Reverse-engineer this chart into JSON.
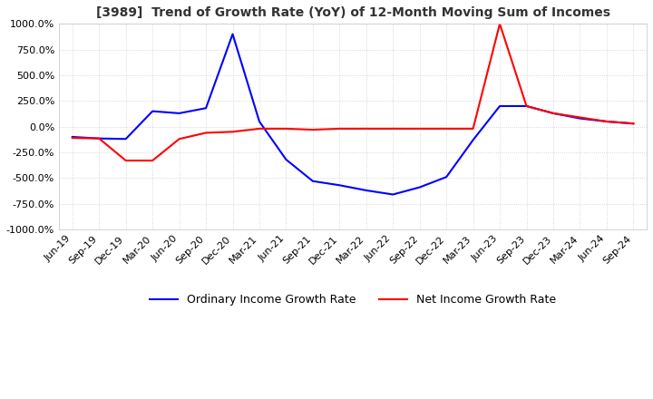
{
  "title": "[3989]  Trend of Growth Rate (YoY) of 12-Month Moving Sum of Incomes",
  "title_fontsize": 10,
  "background_color": "#ffffff",
  "grid_color": "#cccccc",
  "ylim": [
    -1000,
    1000
  ],
  "yticks": [
    -1000,
    -750,
    -500,
    -250,
    0,
    250,
    500,
    750,
    1000
  ],
  "x_labels": [
    "Jun-19",
    "Sep-19",
    "Dec-19",
    "Mar-20",
    "Jun-20",
    "Sep-20",
    "Dec-20",
    "Mar-21",
    "Jun-21",
    "Sep-21",
    "Dec-21",
    "Mar-22",
    "Jun-22",
    "Sep-22",
    "Dec-22",
    "Mar-23",
    "Jun-23",
    "Sep-23",
    "Dec-23",
    "Mar-24",
    "Jun-24",
    "Sep-24"
  ],
  "ordinary_income": [
    -100,
    -115,
    -120,
    150,
    130,
    180,
    900,
    50,
    -320,
    -530,
    -570,
    -620,
    -660,
    -590,
    -490,
    -130,
    200,
    200,
    130,
    80,
    50,
    30
  ],
  "net_income": [
    -110,
    -115,
    -330,
    -330,
    -120,
    -60,
    -50,
    -20,
    -20,
    -30,
    -20,
    -20,
    -20,
    -20,
    -20,
    -20,
    1000,
    200,
    130,
    90,
    50,
    30
  ],
  "line_colors": {
    "ordinary": "#0000ff",
    "net": "#ff0000"
  },
  "legend_labels": {
    "ordinary": "Ordinary Income Growth Rate",
    "net": "Net Income Growth Rate"
  },
  "line_width": 1.5
}
